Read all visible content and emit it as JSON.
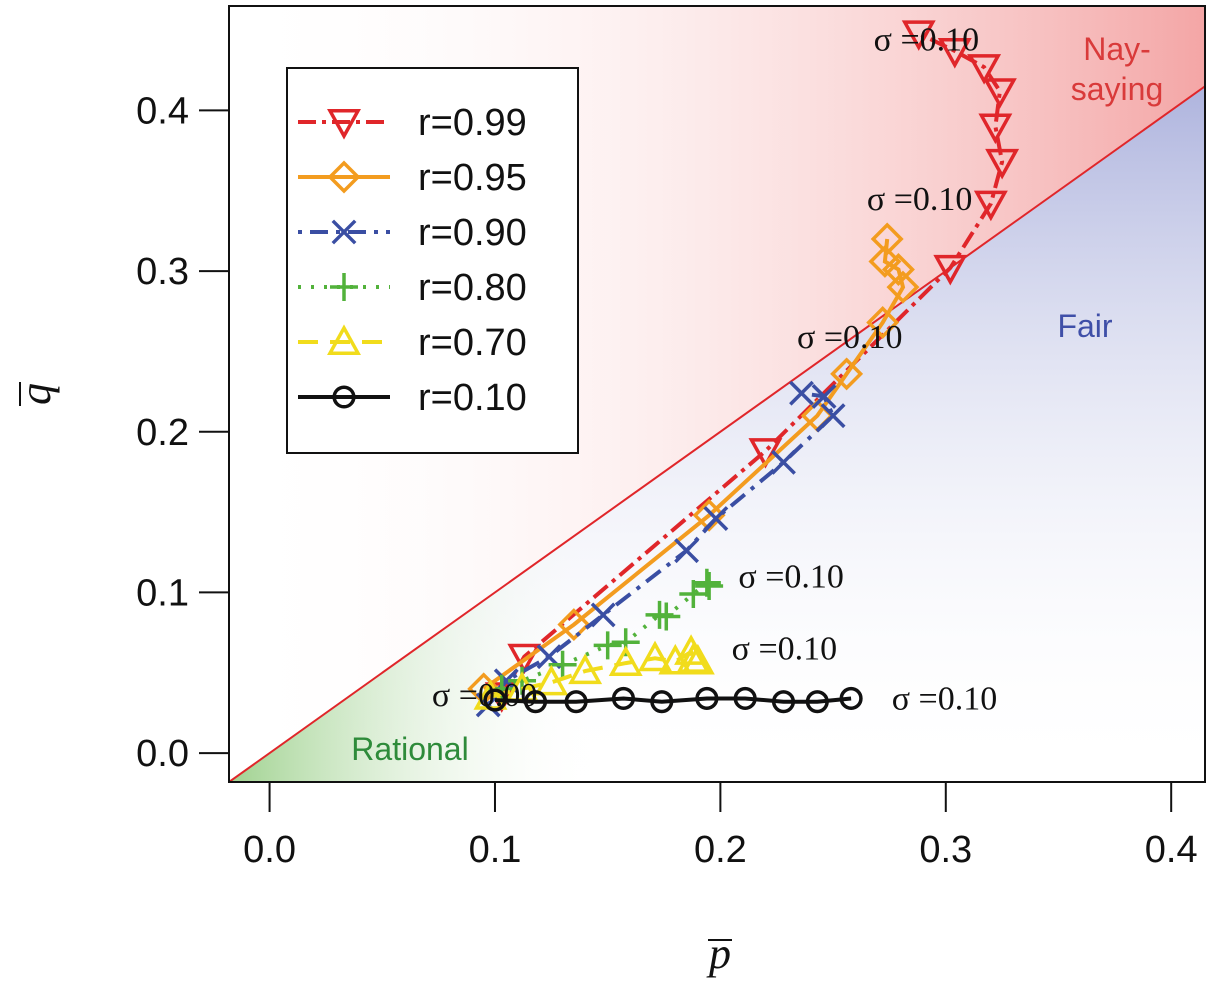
{
  "chart_data": {
    "type": "line",
    "xlabel": "p",
    "ylabel": "q",
    "xlim": [
      -0.018,
      0.415
    ],
    "ylim": [
      -0.018,
      0.465
    ],
    "x_ticks": [
      "0.0",
      "0.1",
      "0.2",
      "0.3",
      "0.4"
    ],
    "y_ticks": [
      "0.0",
      "0.1",
      "0.2",
      "0.3",
      "0.4"
    ],
    "grid": false,
    "legend_position": "top-left",
    "regions": [
      {
        "name": "Nay-saying",
        "label": "Nay-\nsaying",
        "color": "#d93a3a"
      },
      {
        "name": "Fair",
        "label": "Fair",
        "color": "#3f4fa8"
      },
      {
        "name": "Rational",
        "label": "Rational",
        "color": "#2e8b3a"
      }
    ],
    "diagonal": {
      "from": [
        -0.018,
        -0.018
      ],
      "to": [
        0.415,
        0.415
      ],
      "color": "#e0262a"
    },
    "series": [
      {
        "name": "r=0.99",
        "color": "#e0262a",
        "marker": "triangle-down",
        "dash": "18,6,4,6",
        "points": [
          [
            0.103,
            0.036
          ],
          [
            0.113,
            0.06
          ],
          [
            0.22,
            0.188
          ],
          [
            0.302,
            0.302
          ],
          [
            0.32,
            0.342
          ],
          [
            0.325,
            0.368
          ],
          [
            0.322,
            0.39
          ],
          [
            0.324,
            0.412
          ],
          [
            0.317,
            0.427
          ],
          [
            0.304,
            0.437
          ],
          [
            0.288,
            0.448
          ]
        ]
      },
      {
        "name": "r=0.95",
        "color": "#f39c1f",
        "marker": "diamond",
        "dash": "",
        "points": [
          [
            0.095,
            0.04
          ],
          [
            0.135,
            0.08
          ],
          [
            0.195,
            0.148
          ],
          [
            0.243,
            0.21
          ],
          [
            0.256,
            0.236
          ],
          [
            0.272,
            0.268
          ],
          [
            0.281,
            0.29
          ],
          [
            0.279,
            0.301
          ],
          [
            0.273,
            0.306
          ],
          [
            0.274,
            0.32
          ]
        ]
      },
      {
        "name": "r=0.90",
        "color": "#3a4ea3",
        "marker": "cross",
        "dash": "4,8,18,8",
        "points": [
          [
            0.097,
            0.03
          ],
          [
            0.105,
            0.045
          ],
          [
            0.124,
            0.06
          ],
          [
            0.148,
            0.086
          ],
          [
            0.185,
            0.126
          ],
          [
            0.198,
            0.146
          ],
          [
            0.228,
            0.181
          ],
          [
            0.25,
            0.21
          ],
          [
            0.246,
            0.222
          ],
          [
            0.236,
            0.224
          ]
        ]
      },
      {
        "name": "r=0.80",
        "color": "#52b23b",
        "marker": "plus",
        "dash": "3,10",
        "points": [
          [
            0.103,
            0.04
          ],
          [
            0.112,
            0.045
          ],
          [
            0.13,
            0.055
          ],
          [
            0.15,
            0.067
          ],
          [
            0.158,
            0.069
          ],
          [
            0.173,
            0.086
          ],
          [
            0.176,
            0.085
          ],
          [
            0.188,
            0.099
          ],
          [
            0.194,
            0.106
          ],
          [
            0.195,
            0.104
          ]
        ]
      },
      {
        "name": "r=0.70",
        "color": "#f1dc1c",
        "marker": "triangle-up",
        "dash": "20,12",
        "points": [
          [
            0.098,
            0.035
          ],
          [
            0.112,
            0.04
          ],
          [
            0.125,
            0.044
          ],
          [
            0.14,
            0.051
          ],
          [
            0.158,
            0.056
          ],
          [
            0.171,
            0.059
          ],
          [
            0.18,
            0.057
          ],
          [
            0.187,
            0.063
          ],
          [
            0.188,
            0.058
          ],
          [
            0.19,
            0.057
          ]
        ]
      },
      {
        "name": "r=0.10",
        "color": "#111111",
        "marker": "circle",
        "dash": "",
        "points": [
          [
            0.1,
            0.033
          ],
          [
            0.118,
            0.032
          ],
          [
            0.136,
            0.032
          ],
          [
            0.157,
            0.034
          ],
          [
            0.174,
            0.032
          ],
          [
            0.194,
            0.034
          ],
          [
            0.211,
            0.034
          ],
          [
            0.228,
            0.032
          ],
          [
            0.243,
            0.032
          ],
          [
            0.258,
            0.034
          ]
        ]
      }
    ],
    "annotations": [
      {
        "name": "sigma-0.10-r099",
        "text": "σ =0.10",
        "x": 0.268,
        "y": 0.444
      },
      {
        "name": "sigma-0.10-r095",
        "text": "σ =0.10",
        "x": 0.265,
        "y": 0.345
      },
      {
        "name": "sigma-0.10-r090",
        "text": "σ =0.10",
        "x": 0.234,
        "y": 0.259
      },
      {
        "name": "sigma-0.10-r080",
        "text": "σ =0.10",
        "x": 0.208,
        "y": 0.11
      },
      {
        "name": "sigma-0.10-r070",
        "text": "σ =0.10",
        "x": 0.205,
        "y": 0.065
      },
      {
        "name": "sigma-0.10-r010",
        "text": "σ =0.10",
        "x": 0.276,
        "y": 0.034
      },
      {
        "name": "sigma-0.00",
        "text": "σ =0.00",
        "x": 0.072,
        "y": 0.036
      }
    ]
  }
}
